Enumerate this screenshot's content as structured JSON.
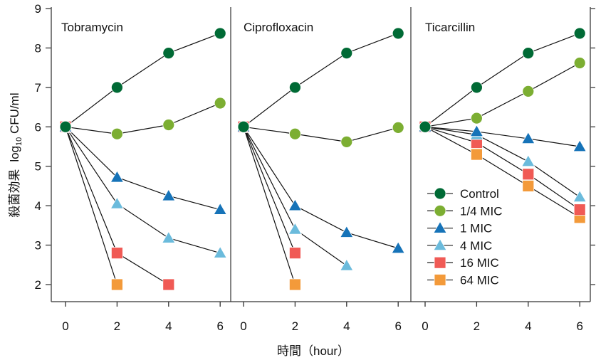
{
  "chart_data": {
    "type": "line",
    "xlabel": "時間（hour）",
    "ylabel_main": "殺菌効果",
    "ylabel_unit_prefix": "log",
    "ylabel_unit_sub": "10",
    "ylabel_unit_suffix": " CFU/ml",
    "ylim": [
      2,
      9
    ],
    "yticks": [
      2,
      3,
      4,
      5,
      6,
      7,
      8,
      9
    ],
    "xticks": [
      0,
      2,
      4,
      6
    ],
    "xlim": [
      0,
      6
    ],
    "grid": false,
    "legend_position": "bottom-right of third panel",
    "series_styles": [
      {
        "name": "Control",
        "marker": "circle",
        "color": "#006a35"
      },
      {
        "name": "1/4 MIC",
        "marker": "circle",
        "color": "#7cae32"
      },
      {
        "name": "1 MIC",
        "marker": "triangle",
        "color": "#1673b8"
      },
      {
        "name": "4 MIC",
        "marker": "triangle",
        "color": "#6bbbdc"
      },
      {
        "name": "16 MIC",
        "marker": "square",
        "color": "#f05a55"
      },
      {
        "name": "64 MIC",
        "marker": "square",
        "color": "#f39a3a"
      }
    ],
    "panels": [
      {
        "title": "Tobramycin",
        "series": [
          {
            "name": "Control",
            "x": [
              0,
              2,
              4,
              6
            ],
            "y": [
              6.0,
              7.0,
              7.87,
              8.37
            ]
          },
          {
            "name": "1/4 MIC",
            "x": [
              0,
              2,
              4,
              6
            ],
            "y": [
              6.0,
              5.82,
              6.05,
              6.6
            ]
          },
          {
            "name": "1 MIC",
            "x": [
              0,
              2,
              4,
              6
            ],
            "y": [
              6.0,
              4.72,
              4.25,
              3.9
            ]
          },
          {
            "name": "4 MIC",
            "x": [
              0,
              2,
              4,
              6
            ],
            "y": [
              6.0,
              4.05,
              3.18,
              2.8
            ]
          },
          {
            "name": "16 MIC",
            "x": [
              0,
              2,
              4
            ],
            "y": [
              6.0,
              2.8,
              2.0
            ]
          },
          {
            "name": "64 MIC",
            "x": [
              0,
              2
            ],
            "y": [
              6.0,
              2.0
            ]
          }
        ]
      },
      {
        "title": "Ciprofloxacin",
        "series": [
          {
            "name": "Control",
            "x": [
              0,
              2,
              4,
              6
            ],
            "y": [
              6.0,
              7.0,
              7.87,
              8.37
            ]
          },
          {
            "name": "1/4 MIC",
            "x": [
              0,
              2,
              4,
              6
            ],
            "y": [
              6.0,
              5.82,
              5.62,
              5.98
            ]
          },
          {
            "name": "1 MIC",
            "x": [
              0,
              2,
              4,
              6
            ],
            "y": [
              6.0,
              4.0,
              3.32,
              2.92
            ]
          },
          {
            "name": "4 MIC",
            "x": [
              0,
              2,
              4
            ],
            "y": [
              6.0,
              3.4,
              2.48
            ]
          },
          {
            "name": "16 MIC",
            "x": [
              0,
              2
            ],
            "y": [
              6.0,
              2.8
            ]
          },
          {
            "name": "64 MIC",
            "x": [
              0,
              2
            ],
            "y": [
              6.0,
              2.0
            ]
          }
        ]
      },
      {
        "title": "Ticarcillin",
        "series": [
          {
            "name": "Control",
            "x": [
              0,
              2,
              4,
              6
            ],
            "y": [
              6.0,
              7.0,
              7.87,
              8.37
            ]
          },
          {
            "name": "1/4 MIC",
            "x": [
              0,
              2,
              4,
              6
            ],
            "y": [
              6.0,
              6.22,
              6.9,
              7.62
            ]
          },
          {
            "name": "1 MIC",
            "x": [
              0,
              2,
              4,
              6
            ],
            "y": [
              6.0,
              5.88,
              5.7,
              5.5
            ]
          },
          {
            "name": "4 MIC",
            "x": [
              0,
              2,
              4,
              6
            ],
            "y": [
              6.0,
              5.8,
              5.12,
              4.22
            ]
          },
          {
            "name": "16 MIC",
            "x": [
              0,
              2,
              4,
              6
            ],
            "y": [
              6.0,
              5.6,
              4.8,
              3.9
            ]
          },
          {
            "name": "64 MIC",
            "x": [
              0,
              2,
              4,
              6
            ],
            "y": [
              6.0,
              5.3,
              4.5,
              3.7
            ]
          }
        ]
      }
    ]
  }
}
